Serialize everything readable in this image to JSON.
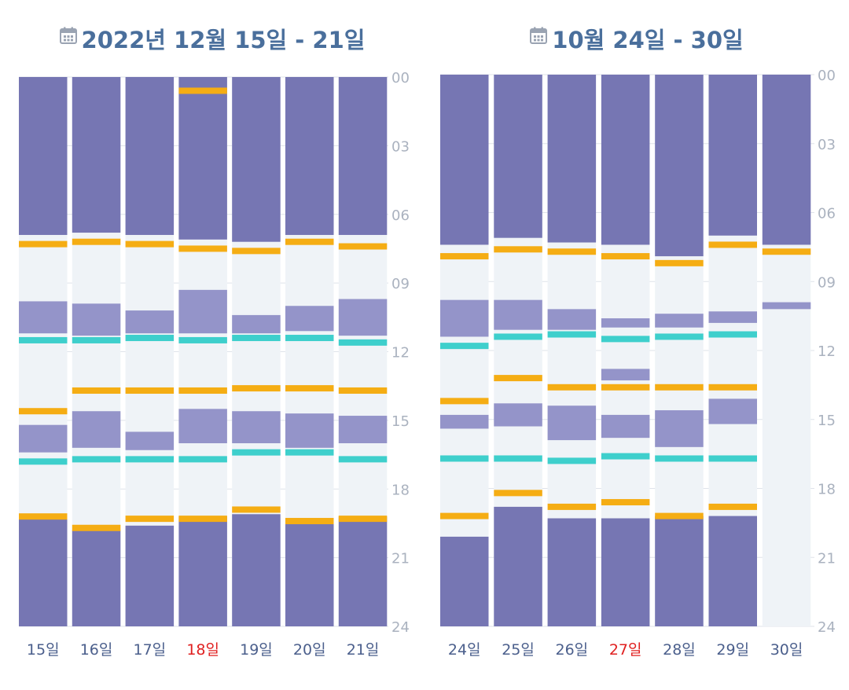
{
  "colors": {
    "sleep": "#7676b3",
    "nap": "#9494c9",
    "background": "#eff3f7",
    "grid": "#dfe3ea",
    "feeding": "#f5ad14",
    "diaper": "#3ecfcc",
    "day_label": "#4b5f8c",
    "day_label_highlight": "#e02020",
    "axis_label": "#aab2bf",
    "title": "#4a6f9c"
  },
  "icons": {
    "title_icon": "calendar-icon"
  },
  "chart_data": [
    {
      "type": "bar",
      "title": "2022년 12월 15일 - 21일",
      "y_ticks": [
        "00",
        "03",
        "06",
        "09",
        "12",
        "15",
        "18",
        "21",
        "24"
      ],
      "ylim": [
        0,
        24
      ],
      "categories": [
        "15일",
        "16일",
        "17일",
        "18일",
        "19일",
        "20일",
        "21일"
      ],
      "highlight_category": "18일",
      "days": [
        {
          "sleep": [
            [
              0,
              6.9
            ],
            [
              19.2,
              24
            ],
            [
              9.8,
              11.2
            ],
            [
              15.2,
              16.4
            ]
          ],
          "feeding": [
            7.3,
            14.6,
            19.2
          ],
          "diaper": [
            11.5,
            16.8
          ]
        },
        {
          "sleep": [
            [
              0,
              6.8
            ],
            [
              19.8,
              24
            ],
            [
              9.9,
              11.3
            ],
            [
              14.6,
              16.2
            ]
          ],
          "feeding": [
            7.2,
            13.7,
            19.7
          ],
          "diaper": [
            11.5,
            16.7
          ]
        },
        {
          "sleep": [
            [
              0,
              6.9
            ],
            [
              19.6,
              24
            ],
            [
              10.2,
              11.2
            ],
            [
              15.5,
              16.3
            ]
          ],
          "feeding": [
            7.3,
            13.7,
            19.3
          ],
          "diaper": [
            11.4,
            16.7
          ]
        },
        {
          "sleep": [
            [
              0,
              7.1
            ],
            [
              19.2,
              24
            ],
            [
              9.3,
              11.2
            ],
            [
              14.5,
              16.0
            ]
          ],
          "feeding": [
            0.6,
            7.5,
            13.7,
            19.3
          ],
          "diaper": [
            11.5,
            16.7
          ]
        },
        {
          "sleep": [
            [
              0,
              7.2
            ],
            [
              19.1,
              24
            ],
            [
              10.4,
              11.2
            ],
            [
              14.6,
              16.0
            ]
          ],
          "feeding": [
            7.6,
            13.6,
            18.9
          ],
          "diaper": [
            11.4,
            16.4
          ]
        },
        {
          "sleep": [
            [
              0,
              6.9
            ],
            [
              19.3,
              24
            ],
            [
              10.0,
              11.1
            ],
            [
              14.7,
              16.2
            ]
          ],
          "feeding": [
            7.2,
            13.6,
            19.4
          ],
          "diaper": [
            11.4,
            16.4
          ]
        },
        {
          "sleep": [
            [
              0,
              6.9
            ],
            [
              19.2,
              24
            ],
            [
              9.7,
              11.3
            ],
            [
              14.8,
              16.0
            ]
          ],
          "feeding": [
            7.4,
            13.7,
            19.3
          ],
          "diaper": [
            11.6,
            16.7
          ]
        }
      ]
    },
    {
      "type": "bar",
      "title": "10월 24일 - 30일",
      "y_ticks": [
        "00",
        "03",
        "06",
        "09",
        "12",
        "15",
        "18",
        "21",
        "24"
      ],
      "ylim": [
        0,
        24
      ],
      "categories": [
        "24일",
        "25일",
        "26일",
        "27일",
        "28일",
        "29일",
        "30일"
      ],
      "highlight_category": "27일",
      "days": [
        {
          "sleep": [
            [
              0,
              7.4
            ],
            [
              20.1,
              24
            ],
            [
              9.8,
              11.4
            ],
            [
              14.8,
              15.4
            ]
          ],
          "feeding": [
            7.9,
            14.2,
            19.2
          ],
          "diaper": [
            11.8,
            16.7
          ]
        },
        {
          "sleep": [
            [
              0,
              7.1
            ],
            [
              18.8,
              24
            ],
            [
              9.8,
              11.1
            ],
            [
              14.3,
              15.3
            ]
          ],
          "feeding": [
            7.6,
            13.2,
            18.2
          ],
          "diaper": [
            11.4,
            16.7
          ]
        },
        {
          "sleep": [
            [
              0,
              7.3
            ],
            [
              19.3,
              24
            ],
            [
              10.2,
              11.1
            ],
            [
              14.4,
              15.9
            ]
          ],
          "feeding": [
            7.7,
            13.6,
            18.8
          ],
          "diaper": [
            11.3,
            16.8
          ]
        },
        {
          "sleep": [
            [
              0,
              7.4
            ],
            [
              19.3,
              24
            ],
            [
              10.6,
              11.0
            ],
            [
              12.8,
              13.3
            ],
            [
              14.8,
              15.8
            ]
          ],
          "feeding": [
            7.9,
            13.6,
            18.6
          ],
          "diaper": [
            11.5,
            16.6
          ]
        },
        {
          "sleep": [
            [
              0,
              7.9
            ],
            [
              19.2,
              24
            ],
            [
              10.4,
              11.0
            ],
            [
              14.6,
              16.2
            ]
          ],
          "feeding": [
            8.2,
            13.6,
            19.2
          ],
          "diaper": [
            11.4,
            16.7
          ]
        },
        {
          "sleep": [
            [
              0,
              7.0
            ],
            [
              19.2,
              24
            ],
            [
              10.3,
              10.8
            ],
            [
              14.1,
              15.2
            ]
          ],
          "feeding": [
            7.4,
            13.6,
            18.8
          ],
          "diaper": [
            11.3,
            16.7
          ]
        },
        {
          "sleep": [
            [
              0,
              7.4
            ],
            [
              9.9,
              10.2
            ]
          ],
          "feeding": [
            7.7
          ],
          "diaper": []
        }
      ]
    }
  ]
}
